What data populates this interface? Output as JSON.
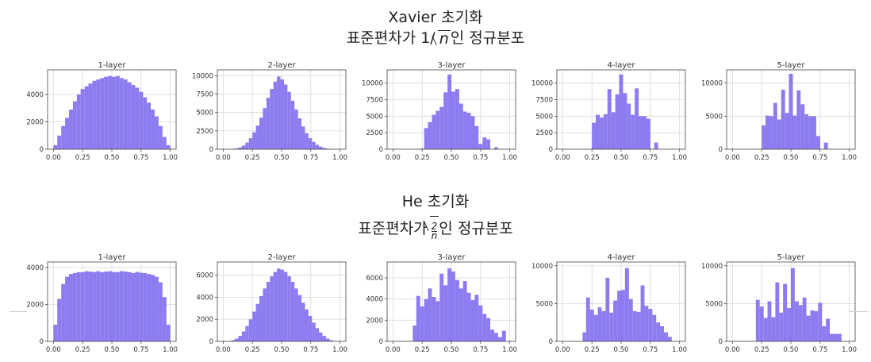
{
  "figures": {
    "xavier": {
      "title_line1": "Xavier 초기화",
      "title_line2_prefix": "표준편차가 1/",
      "title_line2_radicand": "n",
      "title_line2_suffix": "인 정규분포"
    },
    "he": {
      "title_line1": "He 초기화",
      "title_line2_prefix": "표준편차가 ",
      "frac_num": "2",
      "frac_den": "n",
      "title_line2_suffix": "인 정규분포"
    }
  },
  "colors": {
    "bar": "#8c7cf0",
    "grid": "#d9d9d9",
    "axis": "#444444"
  },
  "chart_data": [
    {
      "type": "bar",
      "group": "xavier",
      "title": "1-layer",
      "xlim": [
        -0.05,
        1.05
      ],
      "ylim": [
        0,
        5800
      ],
      "xticks": [
        "0.00",
        "0.25",
        "0.50",
        "0.75",
        "1.00"
      ],
      "yticks": [
        0,
        2000,
        4000
      ],
      "bin_edges": [
        0.0,
        0.033,
        0.067,
        0.1,
        0.133,
        0.167,
        0.2,
        0.233,
        0.267,
        0.3,
        0.333,
        0.367,
        0.4,
        0.433,
        0.467,
        0.5,
        0.533,
        0.567,
        0.6,
        0.633,
        0.667,
        0.7,
        0.733,
        0.767,
        0.8,
        0.833,
        0.867,
        0.9,
        0.933,
        0.967,
        1.0
      ],
      "values": [
        300,
        1000,
        1700,
        2300,
        2900,
        3500,
        4000,
        4400,
        4600,
        4800,
        5000,
        5100,
        5200,
        5300,
        5350,
        5300,
        5350,
        5200,
        5100,
        4900,
        4700,
        4500,
        4200,
        3800,
        3400,
        2900,
        2400,
        1700,
        900,
        300
      ]
    },
    {
      "type": "bar",
      "group": "xavier",
      "title": "2-layer",
      "xlim": [
        -0.05,
        1.05
      ],
      "ylim": [
        0,
        10800
      ],
      "xticks": [
        "0.00",
        "0.25",
        "0.50",
        "0.75",
        "1.00"
      ],
      "yticks": [
        0,
        2500,
        5000,
        7500,
        10000
      ],
      "bin_edges": [
        0.07,
        0.1,
        0.13,
        0.16,
        0.19,
        0.22,
        0.25,
        0.28,
        0.31,
        0.34,
        0.37,
        0.4,
        0.43,
        0.46,
        0.49,
        0.52,
        0.55,
        0.58,
        0.61,
        0.64,
        0.67,
        0.7,
        0.73,
        0.76,
        0.79,
        0.82,
        0.85,
        0.88,
        0.91,
        0.94
      ],
      "values": [
        50,
        120,
        250,
        500,
        900,
        1500,
        2300,
        3200,
        4300,
        5600,
        7000,
        8200,
        9200,
        9900,
        9500,
        8800,
        7800,
        6600,
        5400,
        4200,
        3100,
        2200,
        1500,
        1000,
        600,
        350,
        180,
        80,
        30
      ]
    },
    {
      "type": "bar",
      "group": "xavier",
      "title": "3-layer",
      "xlim": [
        -0.05,
        1.05
      ],
      "ylim": [
        0,
        12000
      ],
      "xticks": [
        "0.00",
        "0.25",
        "0.50",
        "0.75",
        "1.00"
      ],
      "yticks": [
        0,
        2500,
        5000,
        7500,
        10000
      ],
      "bin_edges": [
        0.2,
        0.233,
        0.267,
        0.3,
        0.333,
        0.367,
        0.4,
        0.433,
        0.467,
        0.5,
        0.533,
        0.567,
        0.6,
        0.633,
        0.667,
        0.7,
        0.733,
        0.767,
        0.8,
        0.833,
        0.867,
        0.9
      ],
      "values": [
        0,
        100,
        3200,
        4100,
        5200,
        5800,
        6400,
        8600,
        11300,
        8700,
        9100,
        6900,
        5700,
        5500,
        5000,
        3500,
        800,
        1800,
        1500,
        0,
        300
      ]
    },
    {
      "type": "bar",
      "group": "xavier",
      "title": "4-layer",
      "xlim": [
        -0.05,
        1.05
      ],
      "ylim": [
        0,
        12000
      ],
      "xticks": [
        "0.00",
        "0.25",
        "0.50",
        "0.75",
        "1.00"
      ],
      "yticks": [
        0,
        2500,
        5000,
        7500,
        10000
      ],
      "bin_edges": [
        0.25,
        0.283,
        0.317,
        0.35,
        0.383,
        0.417,
        0.45,
        0.483,
        0.517,
        0.55,
        0.583,
        0.617,
        0.65,
        0.683,
        0.717,
        0.75,
        0.783,
        0.817,
        0.85
      ],
      "values": [
        4000,
        5200,
        4800,
        5300,
        9100,
        5600,
        8300,
        11300,
        8500,
        6900,
        5200,
        9200,
        5000,
        5000,
        4600,
        0,
        1000,
        0
      ]
    },
    {
      "type": "bar",
      "group": "xavier",
      "title": "5-layer",
      "xlim": [
        -0.05,
        1.05
      ],
      "ylim": [
        0,
        12000
      ],
      "xticks": [
        "0.00",
        "0.25",
        "0.50",
        "0.75",
        "1.00"
      ],
      "yticks": [
        0,
        5000,
        10000
      ],
      "bin_edges": [
        0.25,
        0.283,
        0.317,
        0.35,
        0.383,
        0.417,
        0.45,
        0.483,
        0.517,
        0.55,
        0.583,
        0.617,
        0.65,
        0.683,
        0.717,
        0.75,
        0.783,
        0.817,
        0.85
      ],
      "values": [
        3600,
        5100,
        5000,
        7000,
        4500,
        9000,
        5500,
        11400,
        5100,
        8900,
        6800,
        5300,
        5000,
        5000,
        2000,
        0,
        1000,
        0
      ]
    },
    {
      "type": "bar",
      "group": "he",
      "title": "1-layer",
      "xlim": [
        -0.05,
        1.05
      ],
      "ylim": [
        0,
        4300
      ],
      "xticks": [
        "0.00",
        "0.25",
        "0.50",
        "0.75",
        "1.00"
      ],
      "yticks": [
        0,
        2000,
        4000
      ],
      "bin_edges": [
        0.0,
        0.033,
        0.067,
        0.1,
        0.133,
        0.167,
        0.2,
        0.233,
        0.267,
        0.3,
        0.333,
        0.367,
        0.4,
        0.433,
        0.467,
        0.5,
        0.533,
        0.567,
        0.6,
        0.633,
        0.667,
        0.7,
        0.733,
        0.767,
        0.8,
        0.833,
        0.867,
        0.9,
        0.933,
        0.967,
        1.0
      ],
      "values": [
        900,
        2300,
        3100,
        3500,
        3650,
        3700,
        3750,
        3750,
        3800,
        3780,
        3760,
        3800,
        3750,
        3780,
        3800,
        3760,
        3750,
        3800,
        3780,
        3750,
        3700,
        3760,
        3720,
        3700,
        3650,
        3600,
        3500,
        3200,
        2400,
        900
      ]
    },
    {
      "type": "bar",
      "group": "he",
      "title": "2-layer",
      "xlim": [
        -0.05,
        1.05
      ],
      "ylim": [
        0,
        7200
      ],
      "xticks": [
        "0.00",
        "0.25",
        "0.50",
        "0.75",
        "1.00"
      ],
      "yticks": [
        0,
        2000,
        4000,
        6000
      ],
      "bin_edges": [
        0.07,
        0.1,
        0.13,
        0.16,
        0.19,
        0.22,
        0.25,
        0.28,
        0.31,
        0.34,
        0.37,
        0.4,
        0.43,
        0.46,
        0.49,
        0.52,
        0.55,
        0.58,
        0.61,
        0.64,
        0.67,
        0.7,
        0.73,
        0.76,
        0.79,
        0.82,
        0.85,
        0.88,
        0.91,
        0.94
      ],
      "values": [
        100,
        250,
        500,
        900,
        1400,
        2000,
        2700,
        3400,
        4100,
        4800,
        5400,
        5900,
        6300,
        6600,
        6500,
        6300,
        5900,
        5400,
        4800,
        4200,
        3500,
        2900,
        2300,
        1700,
        1200,
        800,
        500,
        250,
        100
      ]
    },
    {
      "type": "bar",
      "group": "he",
      "title": "3-layer",
      "xlim": [
        -0.05,
        1.05
      ],
      "ylim": [
        0,
        7500
      ],
      "xticks": [
        "0.00",
        "0.25",
        "0.50",
        "0.75",
        "1.00"
      ],
      "yticks": [
        0,
        2000,
        4000,
        6000
      ],
      "bin_edges": [
        0.17,
        0.2,
        0.233,
        0.267,
        0.3,
        0.333,
        0.367,
        0.4,
        0.433,
        0.467,
        0.5,
        0.533,
        0.567,
        0.6,
        0.633,
        0.667,
        0.7,
        0.733,
        0.767,
        0.8,
        0.833,
        0.867,
        0.9,
        0.933,
        0.967
      ],
      "values": [
        1500,
        4300,
        3300,
        4000,
        5000,
        4200,
        3800,
        6400,
        5300,
        6900,
        6600,
        5800,
        5000,
        5700,
        4600,
        3900,
        4400,
        3400,
        2600,
        2200,
        1100,
        800,
        400,
        1000
      ]
    },
    {
      "type": "bar",
      "group": "he",
      "title": "4-layer",
      "xlim": [
        -0.05,
        1.05
      ],
      "ylim": [
        0,
        10500
      ],
      "xticks": [
        "0.00",
        "0.25",
        "0.50",
        "0.75",
        "1.00"
      ],
      "yticks": [
        0,
        5000,
        10000
      ],
      "bin_edges": [
        0.17,
        0.2,
        0.233,
        0.267,
        0.3,
        0.333,
        0.367,
        0.4,
        0.433,
        0.467,
        0.5,
        0.533,
        0.567,
        0.6,
        0.633,
        0.667,
        0.7,
        0.733,
        0.767,
        0.8,
        0.833,
        0.867,
        0.9,
        0.933
      ],
      "values": [
        1200,
        5800,
        4200,
        3500,
        4500,
        4000,
        8400,
        3800,
        5400,
        6700,
        6800,
        9700,
        5600,
        4000,
        3900,
        7400,
        4700,
        4300,
        3500,
        2500,
        2000,
        1200,
        600
      ]
    },
    {
      "type": "bar",
      "group": "he",
      "title": "5-layer",
      "xlim": [
        -0.05,
        1.05
      ],
      "ylim": [
        0,
        10500
      ],
      "xticks": [
        "0.00",
        "0.25",
        "0.50",
        "0.75",
        "1.00"
      ],
      "yticks": [
        0,
        5000,
        10000
      ],
      "bin_edges": [
        0.2,
        0.233,
        0.267,
        0.3,
        0.333,
        0.367,
        0.4,
        0.433,
        0.467,
        0.5,
        0.533,
        0.567,
        0.6,
        0.633,
        0.667,
        0.7,
        0.733,
        0.767,
        0.8,
        0.833,
        0.867,
        0.9,
        0.933,
        0.967
      ],
      "values": [
        5500,
        4600,
        3100,
        5300,
        3200,
        7800,
        3800,
        7600,
        4400,
        9700,
        5300,
        4800,
        5800,
        3400,
        4100,
        4000,
        5100,
        2000,
        3000,
        1000,
        1000,
        1000,
        0
      ]
    }
  ]
}
